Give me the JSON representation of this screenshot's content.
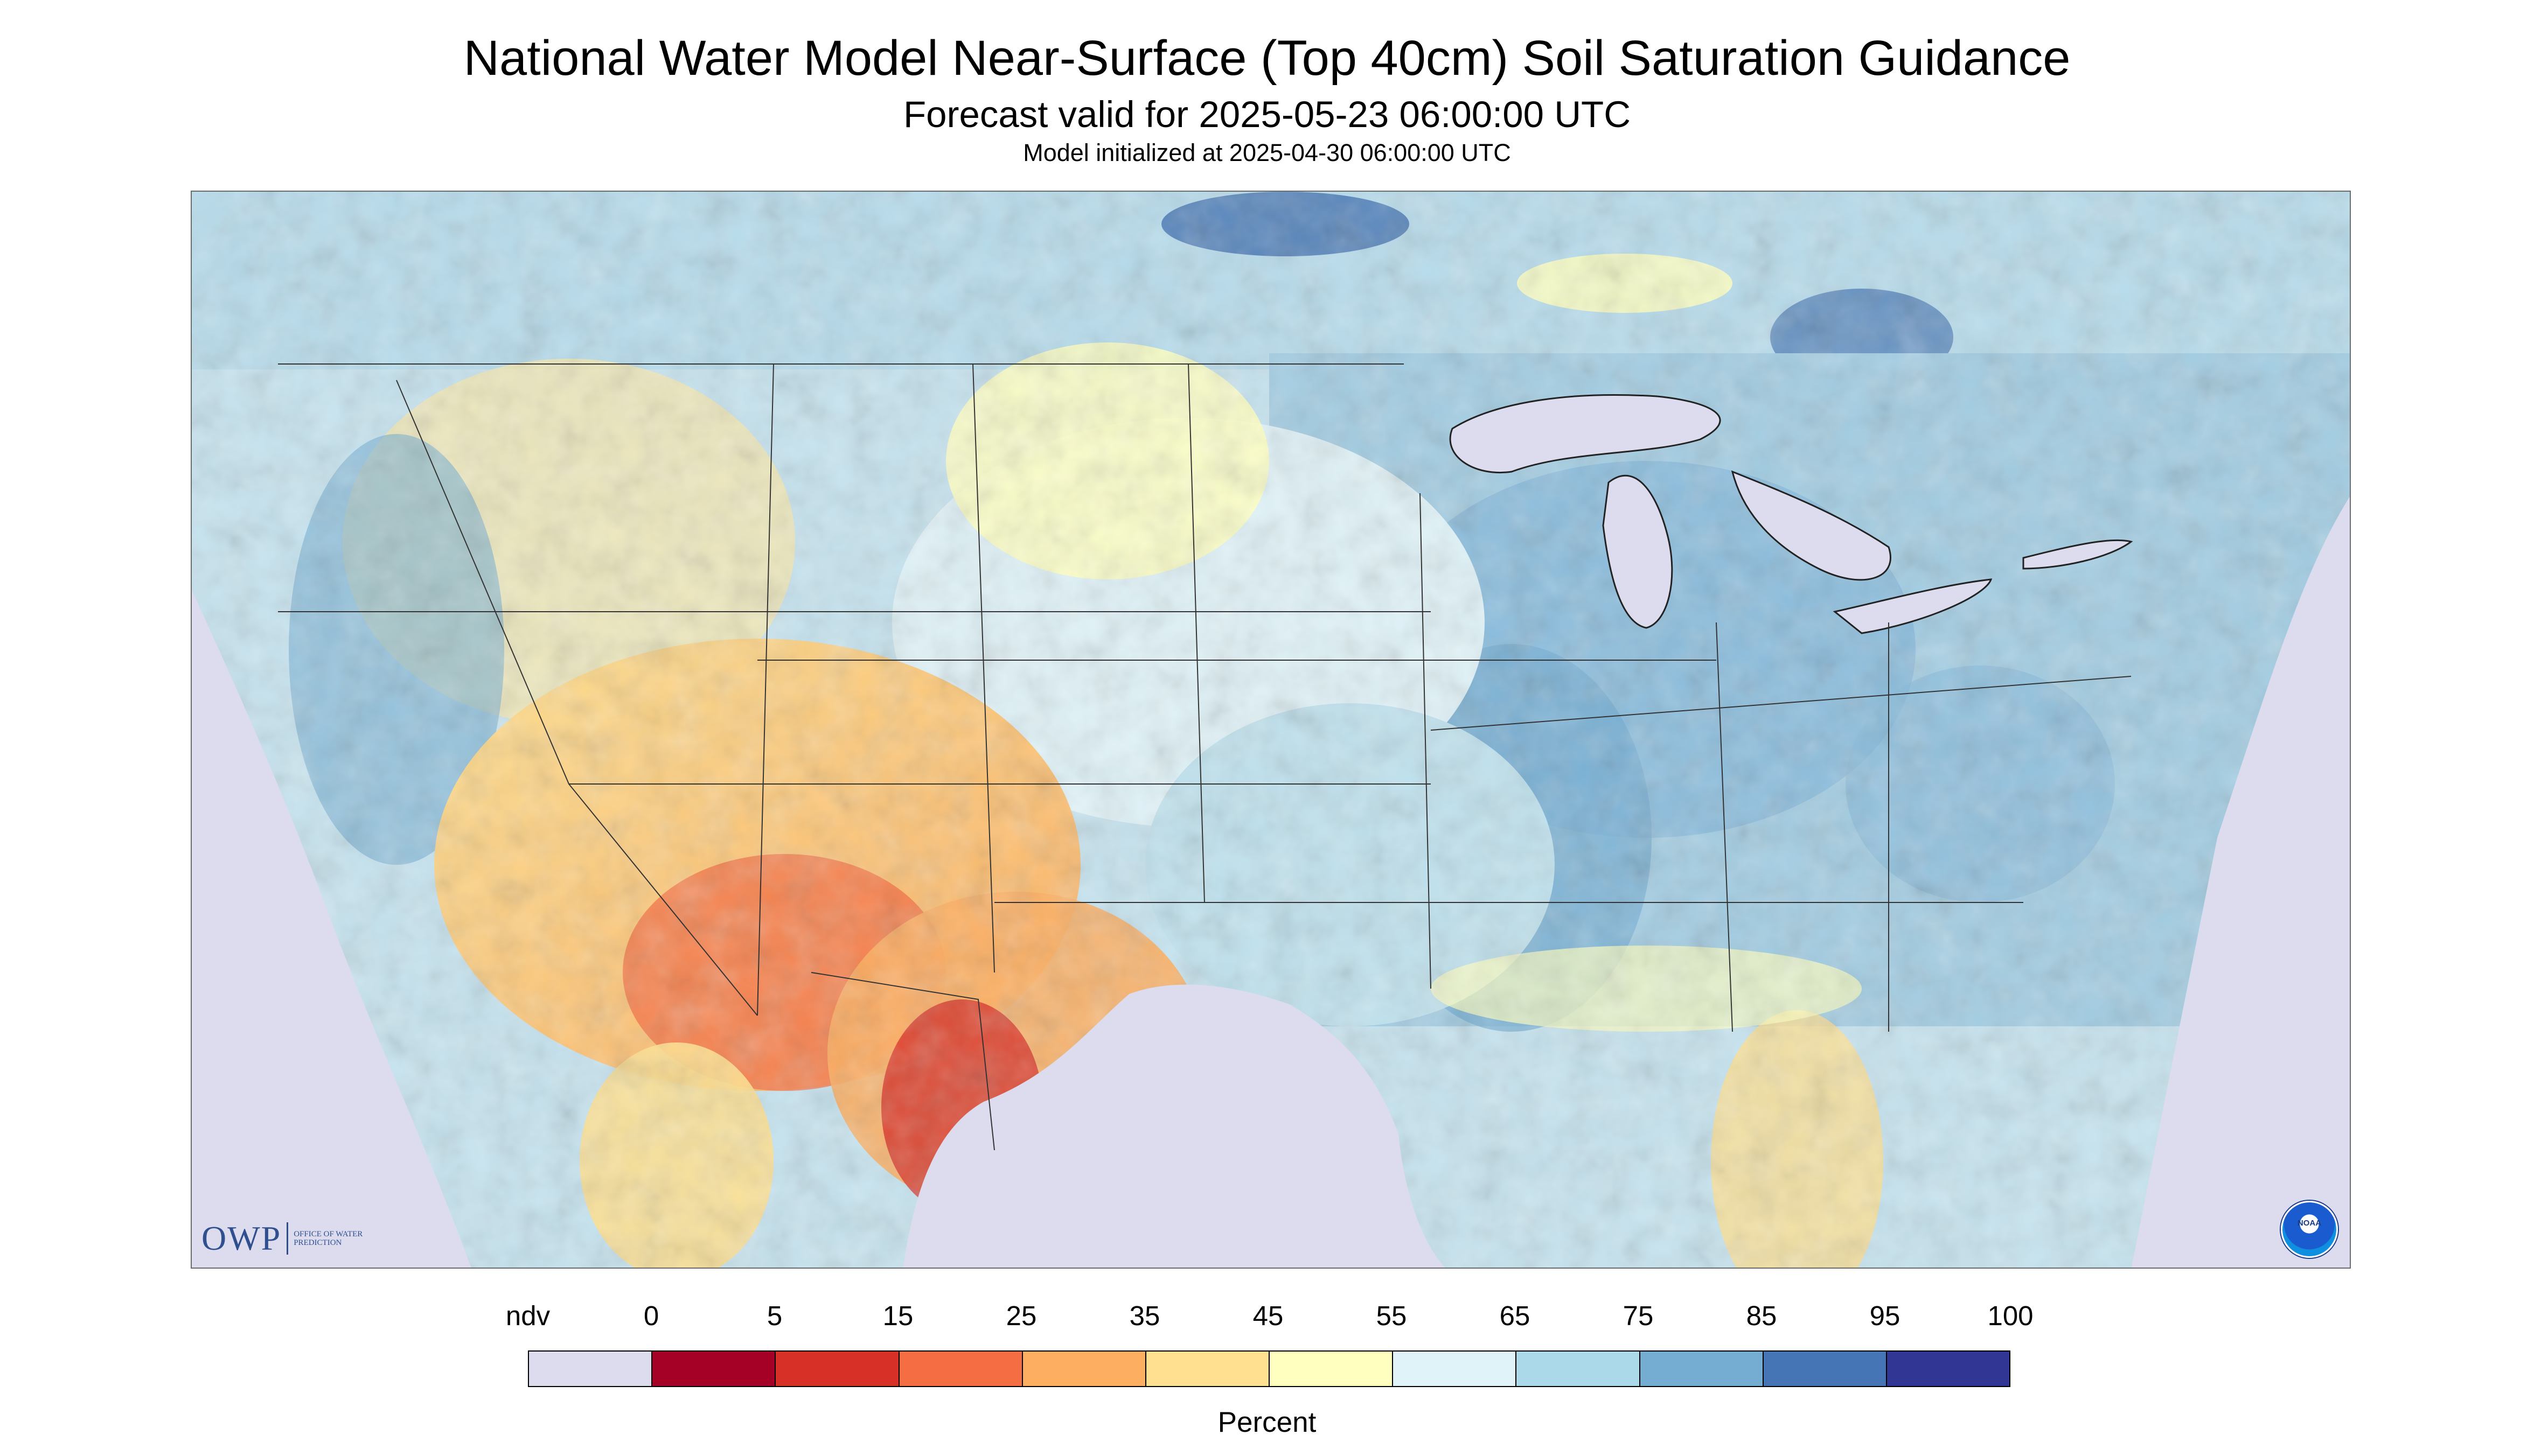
{
  "title": "National Water Model Near-Surface (Top 40cm) Soil Saturation Guidance",
  "subtitle": "Forecast valid for 2025-05-23 06:00:00 UTC",
  "init_line": "Model initialized at 2025-04-30 06:00:00 UTC",
  "logos": {
    "owp": "OWP",
    "owp_name": "Office of Water Prediction",
    "noaa": "NOAA"
  },
  "colorbar": {
    "title": "Percent",
    "labels": [
      "ndv",
      "0",
      "5",
      "15",
      "25",
      "35",
      "45",
      "55",
      "65",
      "75",
      "85",
      "95",
      "100"
    ],
    "colors": [
      "#dcdcee",
      "#a50026",
      "#d73027",
      "#f46d43",
      "#fdae61",
      "#fee090",
      "#ffffbf",
      "#e0f3f8",
      "#abd9e9",
      "#74add1",
      "#4575b4",
      "#313695"
    ]
  },
  "map": {
    "background_ndv": "#dcdcee",
    "water_color": "#dcdcee",
    "state_line_color": "#333333"
  }
}
